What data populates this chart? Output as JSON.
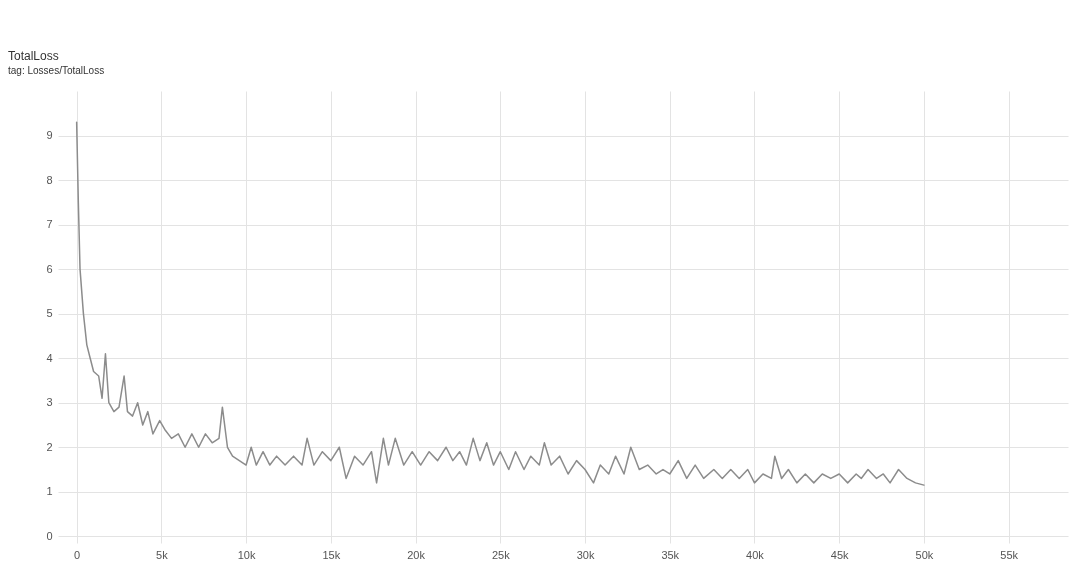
{
  "chart_data": {
    "type": "line",
    "title": "TotalLoss",
    "subtitle": "tag: Losses/TotalLoss",
    "x": [
      0,
      100,
      200,
      400,
      600,
      800,
      1000,
      1300,
      1500,
      1700,
      1900,
      2200,
      2500,
      2800,
      3000,
      3300,
      3600,
      3900,
      4200,
      4500,
      4900,
      5200,
      5600,
      6000,
      6400,
      6800,
      7200,
      7600,
      8000,
      8400,
      8600,
      8900,
      9200,
      9600,
      10000,
      10300,
      10600,
      11000,
      11400,
      11800,
      12300,
      12800,
      13300,
      13600,
      14000,
      14500,
      15000,
      15500,
      15900,
      16400,
      16900,
      17400,
      17700,
      18100,
      18400,
      18800,
      19300,
      19800,
      20300,
      20800,
      21300,
      21800,
      22200,
      22600,
      23000,
      23400,
      23800,
      24200,
      24600,
      25000,
      25500,
      25900,
      26400,
      26800,
      27300,
      27600,
      28000,
      28500,
      29000,
      29500,
      30000,
      30500,
      30900,
      31400,
      31800,
      32300,
      32700,
      33200,
      33700,
      34200,
      34600,
      35000,
      35500,
      36000,
      36500,
      37000,
      37600,
      38100,
      38600,
      39100,
      39600,
      40000,
      40500,
      41000,
      41200,
      41600,
      42000,
      42500,
      43000,
      43500,
      44000,
      44500,
      45000,
      45500,
      46000,
      46300,
      46700,
      47200,
      47600,
      48000,
      48500,
      49000,
      49500,
      50000
    ],
    "series": [
      {
        "color": "#8c8c8c",
        "values": [
          9.3,
          7.5,
          6,
          5.0,
          4.3,
          4.0,
          3.7,
          3.6,
          3.1,
          4.1,
          3.0,
          2.8,
          2.9,
          3.6,
          2.8,
          2.7,
          3.0,
          2.5,
          2.8,
          2.3,
          2.6,
          2.4,
          2.2,
          2.3,
          2.0,
          2.3,
          2.0,
          2.3,
          2.1,
          2.2,
          2.9,
          2.0,
          1.8,
          1.7,
          1.6,
          2.0,
          1.6,
          1.9,
          1.6,
          1.8,
          1.6,
          1.8,
          1.6,
          2.2,
          1.6,
          1.9,
          1.7,
          2.0,
          1.3,
          1.8,
          1.6,
          1.9,
          1.2,
          2.2,
          1.6,
          2.2,
          1.6,
          1.9,
          1.6,
          1.9,
          1.7,
          2.0,
          1.7,
          1.9,
          1.6,
          2.2,
          1.7,
          2.1,
          1.6,
          1.9,
          1.5,
          1.9,
          1.5,
          1.8,
          1.6,
          2.1,
          1.6,
          1.8,
          1.4,
          1.7,
          1.5,
          1.2,
          1.6,
          1.4,
          1.8,
          1.4,
          2.0,
          1.5,
          1.6,
          1.4,
          1.5,
          1.4,
          1.7,
          1.3,
          1.6,
          1.3,
          1.5,
          1.3,
          1.5,
          1.3,
          1.5,
          1.2,
          1.4,
          1.3,
          1.8,
          1.3,
          1.5,
          1.2,
          1.4,
          1.2,
          1.4,
          1.3,
          1.4,
          1.2,
          1.4,
          1.3,
          1.5,
          1.3,
          1.4,
          1.2,
          1.5,
          1.3,
          1.2,
          1.15
        ]
      }
    ],
    "xlim": [
      -1100,
      58500
    ],
    "ylim": [
      -0.15,
      10
    ],
    "xticks": [
      0,
      {
        "value": 5000,
        "label": "5k"
      },
      {
        "value": 10000,
        "label": "10k"
      },
      {
        "value": 15000,
        "label": "15k"
      },
      {
        "value": 20000,
        "label": "20k"
      },
      {
        "value": 25000,
        "label": "25k"
      },
      {
        "value": 30000,
        "label": "30k"
      },
      {
        "value": 35000,
        "label": "35k"
      },
      {
        "value": 40000,
        "label": "40k"
      },
      {
        "value": 45000,
        "label": "45k"
      },
      {
        "value": 50000,
        "label": "50k"
      },
      {
        "value": 55000,
        "label": "55k"
      }
    ],
    "yticks": [
      0,
      1,
      2,
      3,
      4,
      5,
      6,
      7,
      8,
      9
    ],
    "grid": true,
    "line_style": "solid",
    "marker": "none"
  }
}
